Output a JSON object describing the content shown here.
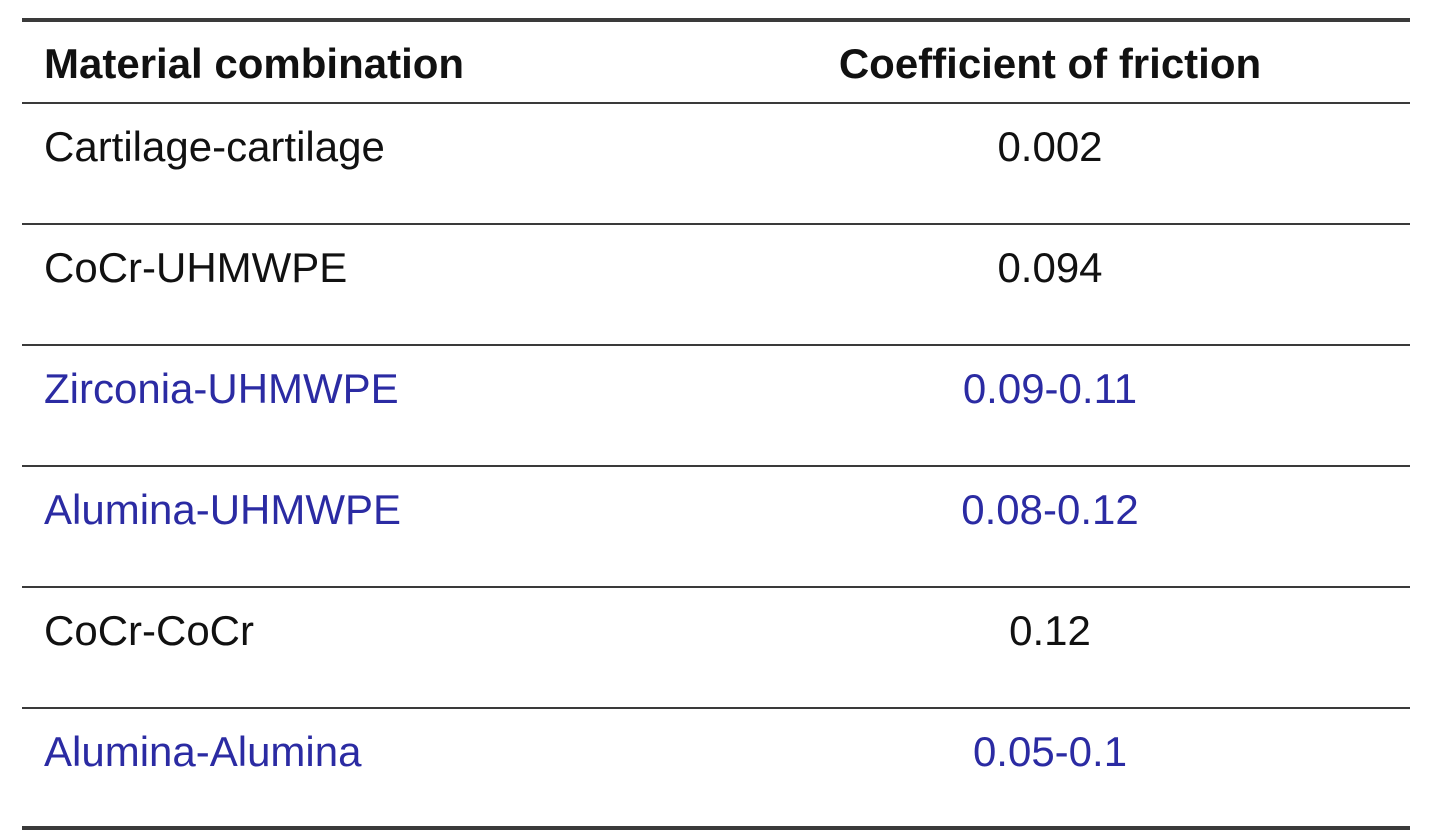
{
  "table": {
    "header": [
      "Material combination",
      "Coefficient of friction"
    ],
    "rows": [
      {
        "cells": [
          "Cartilage-cartilage",
          "0.002"
        ],
        "color": "#111111"
      },
      {
        "cells": [
          "CoCr-UHMWPE",
          "0.094"
        ],
        "color": "#111111"
      },
      {
        "cells": [
          "Zirconia-UHMWPE",
          "0.09-0.11"
        ],
        "color": "#2b2ba3"
      },
      {
        "cells": [
          "Alumina-UHMWPE",
          "0.08-0.12"
        ],
        "color": "#2b2ba3"
      },
      {
        "cells": [
          "CoCr-CoCr",
          "0.12"
        ],
        "color": "#111111"
      },
      {
        "cells": [
          "Alumina-Alumina",
          "0.05-0.1"
        ],
        "color": "#2b2ba3"
      }
    ]
  }
}
